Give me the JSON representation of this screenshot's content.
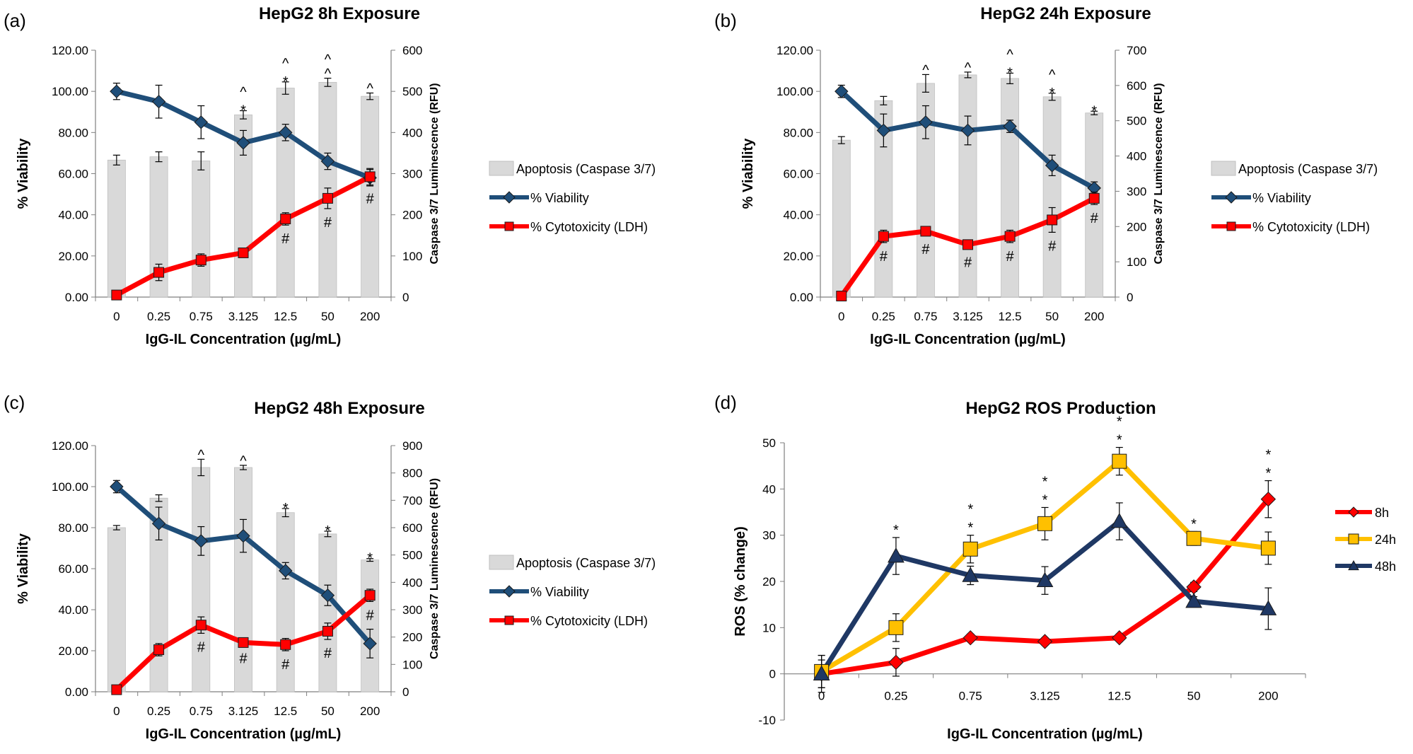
{
  "chart_data": [
    {
      "panel": "(a)",
      "type": "bar+line",
      "title": "HepG2 8h Exposure",
      "xlabel": "IgG-IL Concentration (µg/mL)",
      "ylabel": "% Viability",
      "y2label": "Caspase 3/7 Luminescence (RFU)",
      "categories": [
        "0",
        "0.25",
        "0.75",
        "3.125",
        "12.5",
        "50",
        "200"
      ],
      "ylim": [
        0,
        120
      ],
      "y_ticks": [
        "0.00",
        "20.00",
        "40.00",
        "60.00",
        "80.00",
        "100.00",
        "120.00"
      ],
      "y2lim": [
        0,
        600
      ],
      "y2_ticks": [
        "0",
        "100",
        "200",
        "300",
        "400",
        "500",
        "600"
      ],
      "bars": {
        "name": "Apoptosis (Caspase 3/7)",
        "values": [
          333,
          341,
          331,
          443,
          508,
          522,
          488
        ],
        "errors": [
          12,
          12,
          22,
          10,
          15,
          10,
          8
        ]
      },
      "series": [
        {
          "name": "% Viability",
          "color": "#1f4e79",
          "marker": "diamond",
          "values": [
            100,
            95,
            85,
            75,
            80,
            66,
            58
          ],
          "errors": [
            4,
            8,
            8,
            6,
            4,
            4,
            4
          ]
        },
        {
          "name": "% Cytotoxicity (LDH)",
          "color": "#ff0000",
          "marker": "square",
          "values": [
            1,
            12,
            18,
            21.5,
            38,
            48,
            58.5
          ],
          "errors": [
            1,
            4,
            3,
            1,
            3,
            5,
            4
          ]
        }
      ],
      "annotations": [
        {
          "cat": 3,
          "stack": [
            "^",
            "*"
          ]
        },
        {
          "cat": 4,
          "stack": [
            "^",
            "*",
            "#"
          ]
        },
        {
          "cat": 5,
          "stack": [
            "^",
            "^",
            "#"
          ]
        },
        {
          "cat": 6,
          "stack": [
            "^",
            "#"
          ]
        }
      ]
    },
    {
      "panel": "(b)",
      "type": "bar+line",
      "title": "HepG2 24h Exposure",
      "xlabel": "IgG-IL Concentration (µg/mL)",
      "ylabel": "% Viability",
      "y2label": "Caspase 3/7 Luminescence (RFU)",
      "categories": [
        "0",
        "0.25",
        "0.75",
        "3.125",
        "12.5",
        "50",
        "200"
      ],
      "ylim": [
        0,
        120
      ],
      "y_ticks": [
        "0.00",
        "20.00",
        "40.00",
        "60.00",
        "80.00",
        "100.00",
        "120.00"
      ],
      "y2lim": [
        0,
        700
      ],
      "y2_ticks": [
        "0",
        "100",
        "200",
        "300",
        "400",
        "500",
        "600",
        "700"
      ],
      "bars": {
        "name": "Apoptosis (Caspase 3/7)",
        "values": [
          445,
          557,
          606,
          630,
          620,
          568,
          522
        ],
        "errors": [
          10,
          12,
          25,
          8,
          15,
          10,
          5
        ]
      },
      "series": [
        {
          "name": "% Viability",
          "color": "#1f4e79",
          "marker": "diamond",
          "values": [
            100,
            81,
            85,
            81,
            83,
            64,
            53
          ],
          "errors": [
            3,
            8,
            8,
            7,
            3,
            5,
            3
          ]
        },
        {
          "name": "% Cytotoxicity (LDH)",
          "color": "#ff0000",
          "marker": "square",
          "values": [
            0.5,
            29.5,
            32,
            25.5,
            29.5,
            37.5,
            48
          ],
          "errors": [
            1,
            3,
            2,
            2,
            3,
            6,
            3
          ]
        }
      ],
      "annotations": [
        {
          "cat": 1,
          "stack": [
            "#"
          ]
        },
        {
          "cat": 2,
          "stack": [
            "^",
            "#"
          ]
        },
        {
          "cat": 3,
          "stack": [
            "^",
            "#"
          ]
        },
        {
          "cat": 4,
          "stack": [
            "^",
            "*",
            "#"
          ]
        },
        {
          "cat": 5,
          "stack": [
            "^",
            "*",
            "#"
          ]
        },
        {
          "cat": 6,
          "stack": [
            "*",
            "#"
          ]
        }
      ]
    },
    {
      "panel": "(c)",
      "type": "bar+line",
      "title": "HepG2 48h Exposure",
      "xlabel": "IgG-IL Concentration (µg/mL)",
      "ylabel": "% Viability",
      "y2label": "Caspase 3/7 Luminescence (RFU)",
      "categories": [
        "0",
        "0.25",
        "0.75",
        "3.125",
        "12.5",
        "50",
        "200"
      ],
      "ylim": [
        0,
        120
      ],
      "y_ticks": [
        "0.00",
        "20.00",
        "40.00",
        "60.00",
        "80.00",
        "100.00",
        "120.00"
      ],
      "y2lim": [
        0,
        900
      ],
      "y2_ticks": [
        "0",
        "100",
        "200",
        "300",
        "400",
        "500",
        "600",
        "700",
        "800",
        "900"
      ],
      "bars": {
        "name": "Apoptosis (Caspase 3/7)",
        "values": [
          600,
          708,
          820,
          820,
          655,
          577,
          482
        ],
        "errors": [
          8,
          12,
          30,
          8,
          15,
          10,
          5
        ]
      },
      "series": [
        {
          "name": "% Viability",
          "color": "#1f4e79",
          "marker": "diamond",
          "values": [
            100,
            82,
            73.5,
            76,
            59,
            47,
            23.5
          ],
          "errors": [
            3,
            8,
            7,
            8,
            4,
            5,
            7
          ]
        },
        {
          "name": "% Cytotoxicity (LDH)",
          "color": "#ff0000",
          "marker": "square",
          "values": [
            1,
            20.5,
            32.5,
            24,
            23,
            29.5,
            47
          ],
          "errors": [
            1,
            3,
            4,
            1,
            3,
            4,
            3
          ]
        }
      ],
      "annotations": [
        {
          "cat": 2,
          "stack": [
            "^",
            "#"
          ]
        },
        {
          "cat": 3,
          "stack": [
            "^",
            "#"
          ]
        },
        {
          "cat": 4,
          "stack": [
            "*",
            "#"
          ]
        },
        {
          "cat": 5,
          "stack": [
            "*",
            "#"
          ]
        },
        {
          "cat": 6,
          "stack": [
            "*",
            "#"
          ]
        }
      ]
    },
    {
      "panel": "(d)",
      "type": "line",
      "title": "HepG2 ROS Production",
      "xlabel": "IgG-IL Concentration (µg/mL)",
      "ylabel": "ROS (% change)",
      "categories": [
        "0",
        "0.25",
        "0.75",
        "3.125",
        "12.5",
        "50",
        "200"
      ],
      "ylim": [
        -10,
        50
      ],
      "y_ticks": [
        "-10",
        "0",
        "10",
        "20",
        "30",
        "40",
        "50"
      ],
      "series": [
        {
          "name": "8h",
          "color": "#ff0000",
          "marker": "diamond",
          "values": [
            0,
            2.5,
            7.8,
            7,
            7.8,
            18.8,
            37.8
          ],
          "errors": [
            3,
            3,
            0.8,
            0.8,
            0.8,
            1,
            4
          ]
        },
        {
          "name": "24h",
          "color": "#ffc000",
          "marker": "square",
          "values": [
            0.5,
            10,
            27,
            32.5,
            46,
            29.3,
            27.2
          ],
          "errors": [
            3.5,
            3,
            3,
            3.5,
            3,
            1.5,
            3.5
          ]
        },
        {
          "name": "48h",
          "color": "#1f3864",
          "marker": "triangle",
          "values": [
            0,
            25.5,
            21.3,
            20.2,
            33,
            15.7,
            14.1
          ],
          "errors": [
            4,
            4,
            2,
            3,
            4,
            1,
            4.5
          ]
        }
      ],
      "annotations": [
        {
          "cat": 1,
          "stack": [
            "*"
          ]
        },
        {
          "cat": 2,
          "stack": [
            "*",
            "*"
          ]
        },
        {
          "cat": 3,
          "stack": [
            "*",
            "*"
          ]
        },
        {
          "cat": 4,
          "stack": [
            "*",
            "*"
          ]
        },
        {
          "cat": 5,
          "stack": [
            "*"
          ]
        },
        {
          "cat": 6,
          "stack": [
            "*",
            "*"
          ]
        }
      ]
    }
  ]
}
